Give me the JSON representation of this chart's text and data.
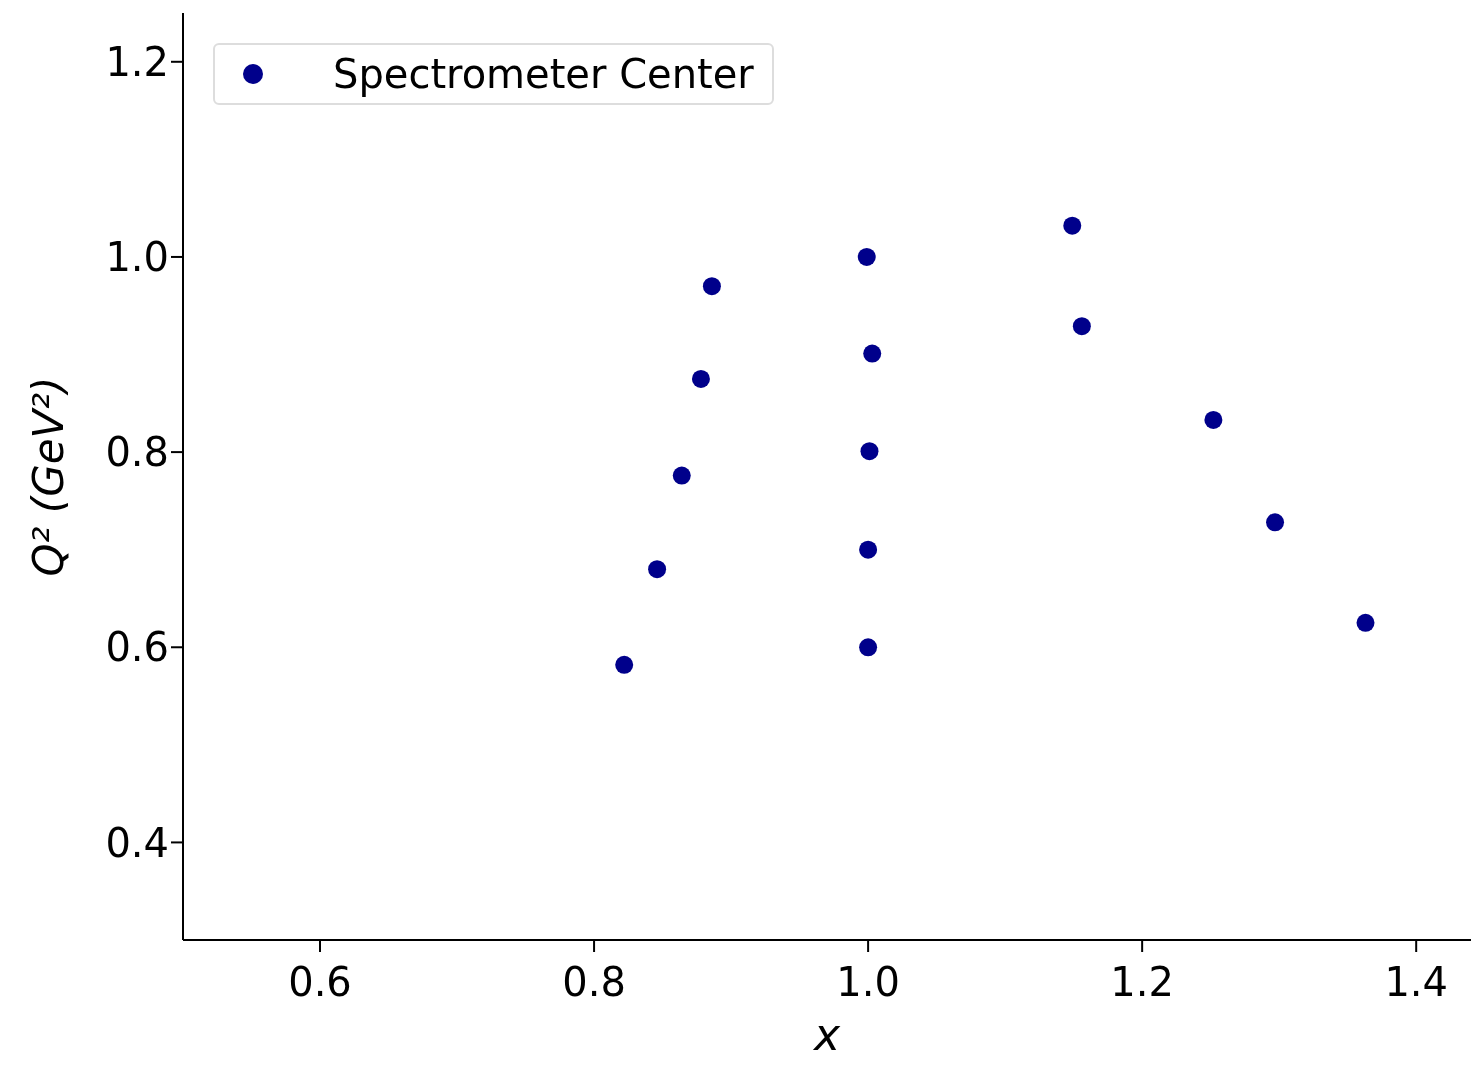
{
  "chart_data": {
    "type": "scatter",
    "xlabel": "x",
    "ylabel": "Q² (GeV²)",
    "xlim": [
      0.5,
      1.44
    ],
    "xticks": [
      0.6,
      0.8,
      {
        "value": 1,
        "label": "1.0"
      },
      1.2,
      1.4
    ],
    "ylim": [
      0.3,
      1.25
    ],
    "yticks": [
      0.4,
      0.6,
      0.8,
      {
        "value": 1,
        "label": "1.0"
      },
      1.2
    ],
    "grid": false,
    "legend": "top left",
    "marker": "circle",
    "series": [
      {
        "name": "Spectrometer Center",
        "color": "#00008b",
        "x": [
          0.822,
          0.846,
          0.864,
          0.878,
          0.886,
          0.999,
          1.003,
          1.001,
          1.0,
          1.0,
          1.149,
          1.156,
          1.252,
          1.297,
          1.363
        ],
        "values": [
          0.582,
          0.68,
          0.776,
          0.875,
          0.97,
          1.0,
          0.901,
          0.801,
          0.7,
          0.6,
          1.032,
          0.929,
          0.833,
          0.728,
          0.625
        ]
      }
    ]
  }
}
